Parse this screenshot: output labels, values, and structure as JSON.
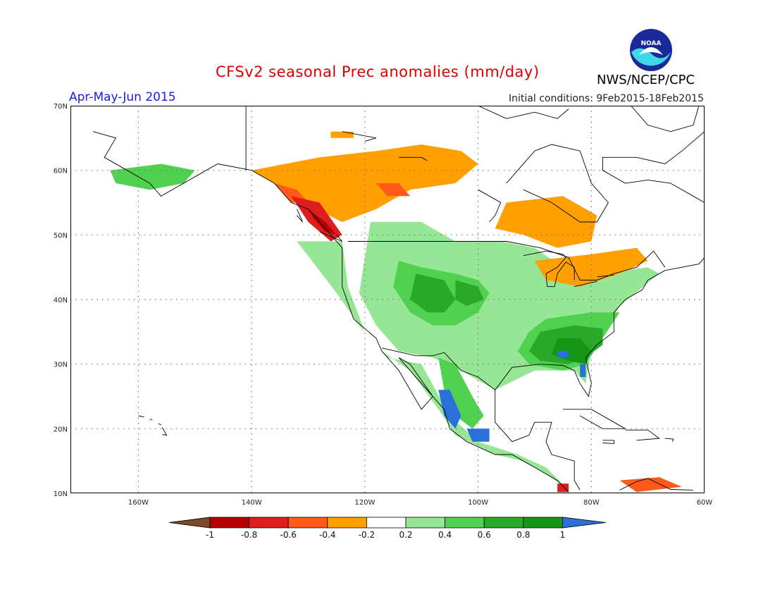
{
  "header": {
    "title": "CFSv2 seasonal Prec anomalies (mm/day)",
    "season": "Apr-May-Jun 2015",
    "initial_conditions": "Initial conditions: 9Feb2015-18Feb2015",
    "agency": "NWS/NCEP/CPC",
    "logo_text": "NOAA"
  },
  "map": {
    "lon_range": [
      -172,
      -60
    ],
    "lat_range": [
      10,
      70
    ],
    "lon_labels": [
      "160W",
      "140W",
      "120W",
      "100W",
      "80W",
      "60W"
    ],
    "lat_labels": [
      "70N",
      "60N",
      "50N",
      "40N",
      "30N",
      "20N",
      "10N"
    ]
  },
  "legend": {
    "labels": [
      "-1",
      "-0.8",
      "-0.6",
      "-0.4",
      "-0.2",
      "0.2",
      "0.4",
      "0.6",
      "0.8",
      "1"
    ],
    "colors": {
      "below_-1": "#7a4a2a",
      "-1_-0.8": "#b40000",
      "-0.8_-0.6": "#dc1e1e",
      "-0.6_-0.4": "#ff5a1a",
      "-0.4_-0.2": "#ffa000",
      "-0.2_0.2": "#ffffff",
      "0.2_0.4": "#96e696",
      "0.4_0.6": "#50d250",
      "0.6_0.8": "#28aa28",
      "0.8_1": "#149614",
      "above_1": "#2a70d8"
    }
  }
}
